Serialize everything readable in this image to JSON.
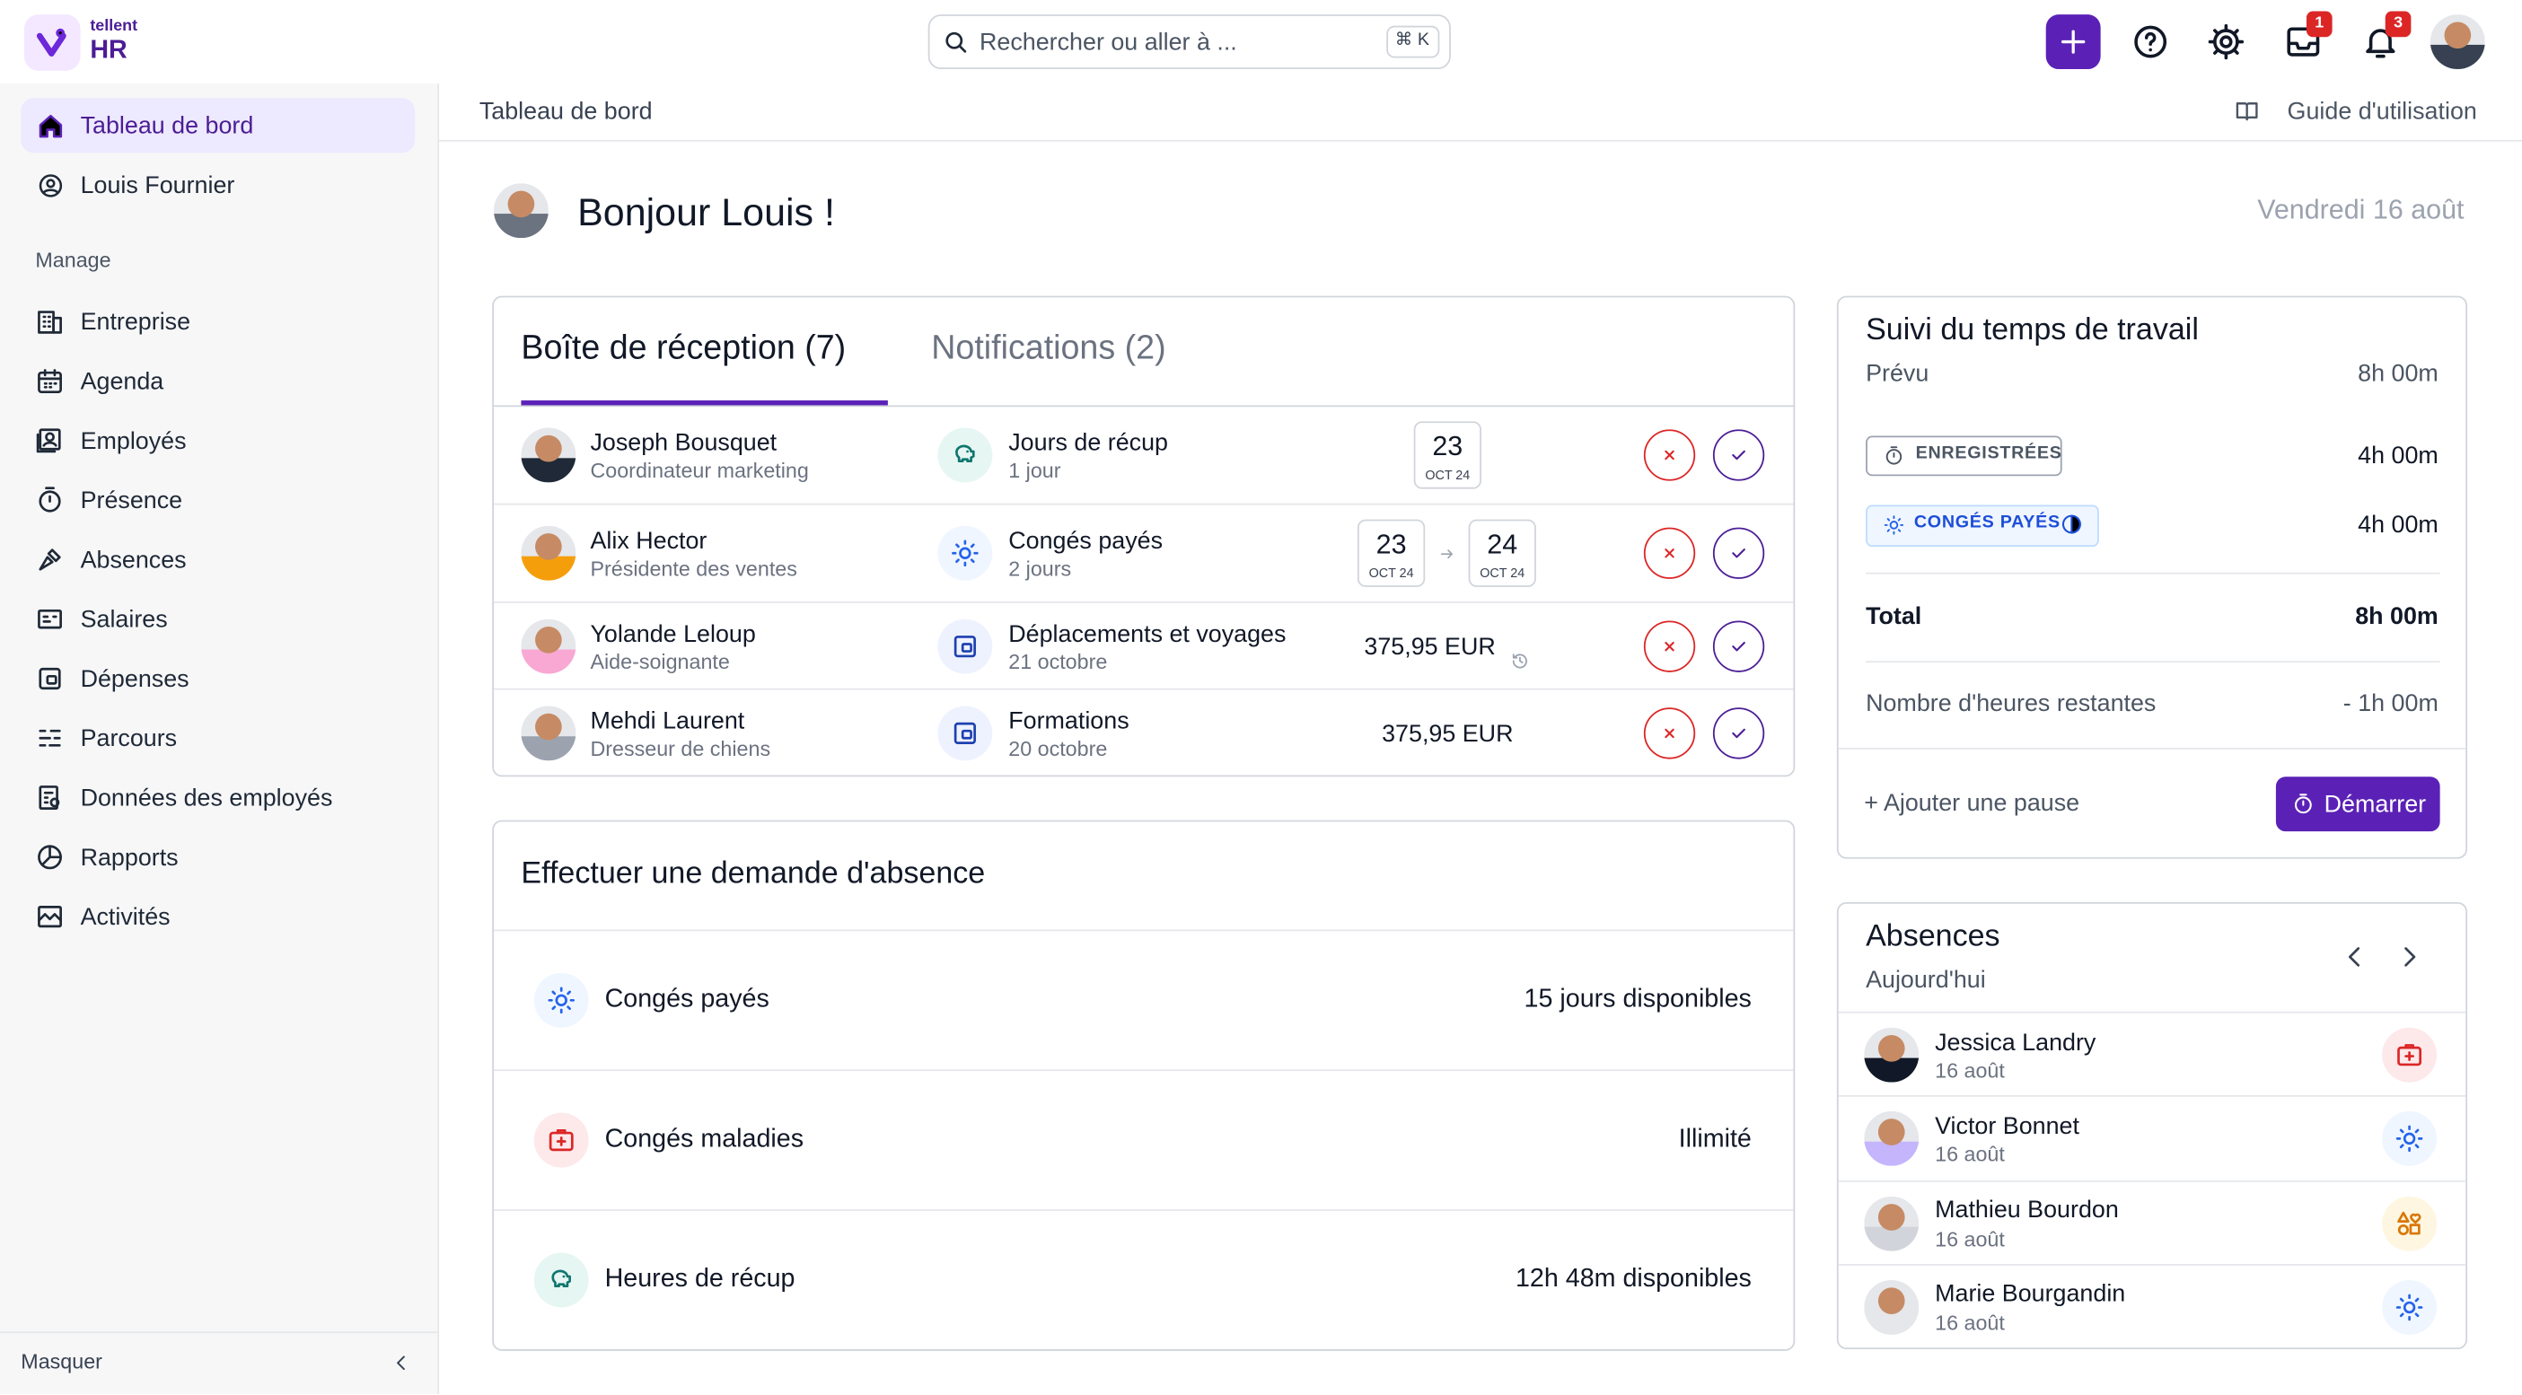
{
  "app": {
    "logo": {
      "brand": "tellent",
      "product": "HR"
    }
  },
  "search": {
    "placeholder": "Rechercher ou aller à ...",
    "shortcut": "⌘ K"
  },
  "toolbar": {
    "inbox_count": 1,
    "notification_count": 3
  },
  "sidebar": {
    "nav": [
      "Tableau de bord",
      "Louis Fournier"
    ],
    "section": "Manage",
    "manage": [
      "Entreprise",
      "Agenda",
      "Employés",
      "Présence",
      "Absences",
      "Salaires",
      "Dépenses",
      "Parcours",
      "Données des employés",
      "Rapports",
      "Activités"
    ],
    "collapse": "Masquer"
  },
  "header": {
    "breadcrumb": "Tableau de bord",
    "guide": "Guide d'utilisation",
    "greeting": "Bonjour Louis !",
    "date": "Vendredi 16 août"
  },
  "inbox": {
    "tabs": [
      "Boîte de réception (7)",
      "Notifications (2)"
    ],
    "rows": [
      {
        "name": "Joseph Bousquet",
        "role": "Coordinateur marketing",
        "request": "Jours de récup",
        "detail": "1 jour",
        "dates": [
          {
            "day": "23",
            "month": "OCT 24"
          }
        ]
      },
      {
        "name": "Alix Hector",
        "role": "Présidente des ventes",
        "request": "Congés payés",
        "detail": "2 jours",
        "dates": [
          {
            "day": "23",
            "month": "OCT 24"
          },
          {
            "day": "24",
            "month": "OCT 24"
          }
        ]
      },
      {
        "name": "Yolande Leloup",
        "role": "Aide-soignante",
        "request": "Déplacements et voyages",
        "detail": "21 octobre",
        "amount": "375,95 EUR"
      },
      {
        "name": "Mehdi Laurent",
        "role": "Dresseur de chiens",
        "request": "Formations",
        "detail": "20 octobre",
        "amount": "375,95 EUR"
      }
    ]
  },
  "absence_request": {
    "title": "Effectuer une demande d'absence",
    "rows": [
      {
        "type": "Congés payés",
        "availability": "15 jours disponibles"
      },
      {
        "type": "Congés maladies",
        "availability": "Illimité"
      },
      {
        "type": "Heures de récup",
        "availability": "12h 48m disponibles"
      }
    ]
  },
  "time_tracking": {
    "title": "Suivi du temps de travail",
    "planned": {
      "label": "Prévu",
      "value": "8h 00m"
    },
    "entries": [
      {
        "label": "ENREGISTRÉES",
        "value": "4h 00m"
      },
      {
        "label": "CONGÉS PAYÉS",
        "value": "4h 00m"
      }
    ],
    "total": {
      "label": "Total",
      "value": "8h 00m"
    },
    "remaining": {
      "label": "Nombre d'heures restantes",
      "value": "- 1h 00m"
    },
    "add_break": "+ Ajouter une pause",
    "start": "Démarrer"
  },
  "absences": {
    "title": "Absences",
    "subtitle": "Aujourd'hui",
    "people": [
      {
        "name": "Jessica Landry",
        "date": "16 août"
      },
      {
        "name": "Victor Bonnet",
        "date": "16 août"
      },
      {
        "name": "Mathieu Bourdon",
        "date": "16 août"
      },
      {
        "name": "Marie Bourgandin",
        "date": "16 août"
      }
    ]
  }
}
